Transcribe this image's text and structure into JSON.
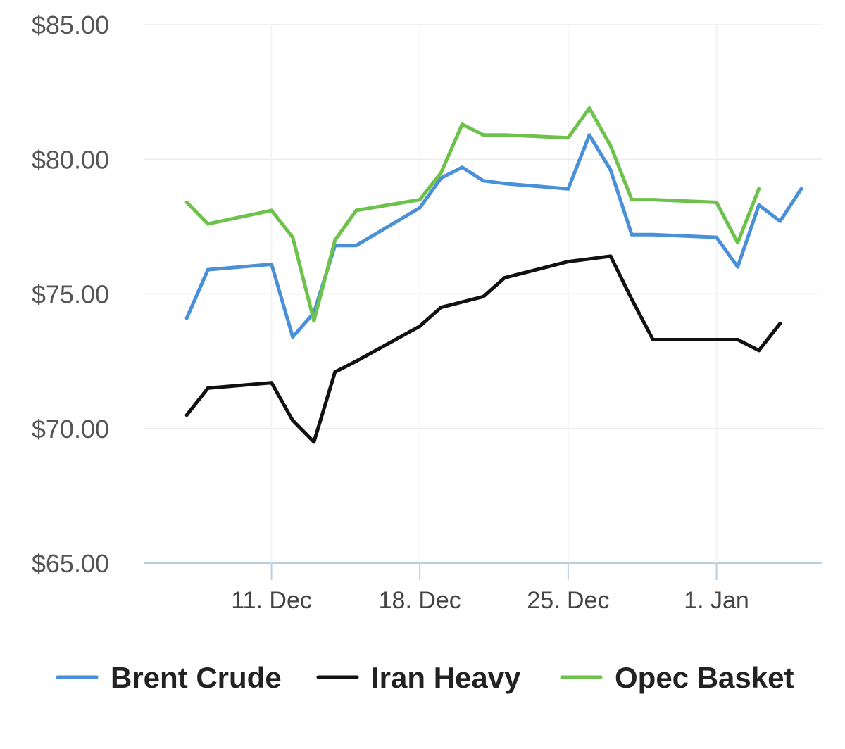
{
  "chart_data": {
    "type": "line",
    "title": "",
    "xlabel": "",
    "ylabel": "",
    "ylim": [
      65,
      85
    ],
    "y_ticks": [
      {
        "value": 65,
        "label": "$65.00"
      },
      {
        "value": 70,
        "label": "$70.00"
      },
      {
        "value": 75,
        "label": "$75.00"
      },
      {
        "value": 80,
        "label": "$80.00"
      },
      {
        "value": 85,
        "label": "$85.00"
      }
    ],
    "x_range": [
      "2023-12-05",
      "2024-01-06"
    ],
    "x_ticks": [
      {
        "date": "2023-12-11",
        "label": "11. Dec"
      },
      {
        "date": "2023-12-18",
        "label": "18. Dec"
      },
      {
        "date": "2023-12-25",
        "label": "25. Dec"
      },
      {
        "date": "2024-01-01",
        "label": "1. Jan"
      }
    ],
    "grid": true,
    "legend": "bottom",
    "series": [
      {
        "name": "Brent Crude",
        "color": "#4a90d9",
        "points": [
          {
            "x": "2023-12-07",
            "y": 74.1
          },
          {
            "x": "2023-12-08",
            "y": 75.9
          },
          {
            "x": "2023-12-11",
            "y": 76.1
          },
          {
            "x": "2023-12-12",
            "y": 73.4
          },
          {
            "x": "2023-12-13",
            "y": 74.3
          },
          {
            "x": "2023-12-14",
            "y": 76.8
          },
          {
            "x": "2023-12-15",
            "y": 76.8
          },
          {
            "x": "2023-12-18",
            "y": 78.2
          },
          {
            "x": "2023-12-19",
            "y": 79.3
          },
          {
            "x": "2023-12-20",
            "y": 79.7
          },
          {
            "x": "2023-12-21",
            "y": 79.2
          },
          {
            "x": "2023-12-22",
            "y": 79.1
          },
          {
            "x": "2023-12-25",
            "y": 78.9
          },
          {
            "x": "2023-12-26",
            "y": 80.9
          },
          {
            "x": "2023-12-27",
            "y": 79.6
          },
          {
            "x": "2023-12-28",
            "y": 77.2
          },
          {
            "x": "2023-12-29",
            "y": 77.2
          },
          {
            "x": "2024-01-01",
            "y": 77.1
          },
          {
            "x": "2024-01-02",
            "y": 76.0
          },
          {
            "x": "2024-01-03",
            "y": 78.3
          },
          {
            "x": "2024-01-04",
            "y": 77.7
          },
          {
            "x": "2024-01-05",
            "y": 78.9
          }
        ]
      },
      {
        "name": "Iran Heavy",
        "color": "#111111",
        "points": [
          {
            "x": "2023-12-07",
            "y": 70.5
          },
          {
            "x": "2023-12-08",
            "y": 71.5
          },
          {
            "x": "2023-12-11",
            "y": 71.7
          },
          {
            "x": "2023-12-12",
            "y": 70.3
          },
          {
            "x": "2023-12-13",
            "y": 69.5
          },
          {
            "x": "2023-12-14",
            "y": 72.1
          },
          {
            "x": "2023-12-15",
            "y": 72.5
          },
          {
            "x": "2023-12-18",
            "y": 73.8
          },
          {
            "x": "2023-12-19",
            "y": 74.5
          },
          {
            "x": "2023-12-20",
            "y": 74.7
          },
          {
            "x": "2023-12-21",
            "y": 74.9
          },
          {
            "x": "2023-12-22",
            "y": 75.6
          },
          {
            "x": "2023-12-25",
            "y": 76.2
          },
          {
            "x": "2023-12-26",
            "y": 76.3
          },
          {
            "x": "2023-12-27",
            "y": 76.4
          },
          {
            "x": "2023-12-28",
            "y": 74.8
          },
          {
            "x": "2023-12-29",
            "y": 73.3
          },
          {
            "x": "2024-01-01",
            "y": 73.3
          },
          {
            "x": "2024-01-02",
            "y": 73.3
          },
          {
            "x": "2024-01-03",
            "y": 72.9
          },
          {
            "x": "2024-01-04",
            "y": 73.9
          }
        ]
      },
      {
        "name": "Opec Basket",
        "color": "#6cc24a",
        "points": [
          {
            "x": "2023-12-07",
            "y": 78.4
          },
          {
            "x": "2023-12-08",
            "y": 77.6
          },
          {
            "x": "2023-12-11",
            "y": 78.1
          },
          {
            "x": "2023-12-12",
            "y": 77.1
          },
          {
            "x": "2023-12-13",
            "y": 74.0
          },
          {
            "x": "2023-12-14",
            "y": 77.0
          },
          {
            "x": "2023-12-15",
            "y": 78.1
          },
          {
            "x": "2023-12-18",
            "y": 78.5
          },
          {
            "x": "2023-12-19",
            "y": 79.5
          },
          {
            "x": "2023-12-20",
            "y": 81.3
          },
          {
            "x": "2023-12-21",
            "y": 80.9
          },
          {
            "x": "2023-12-22",
            "y": 80.9
          },
          {
            "x": "2023-12-25",
            "y": 80.8
          },
          {
            "x": "2023-12-26",
            "y": 81.9
          },
          {
            "x": "2023-12-27",
            "y": 80.5
          },
          {
            "x": "2023-12-28",
            "y": 78.5
          },
          {
            "x": "2023-12-29",
            "y": 78.5
          },
          {
            "x": "2024-01-01",
            "y": 78.4
          },
          {
            "x": "2024-01-02",
            "y": 76.9
          },
          {
            "x": "2024-01-03",
            "y": 78.9
          }
        ]
      }
    ]
  }
}
